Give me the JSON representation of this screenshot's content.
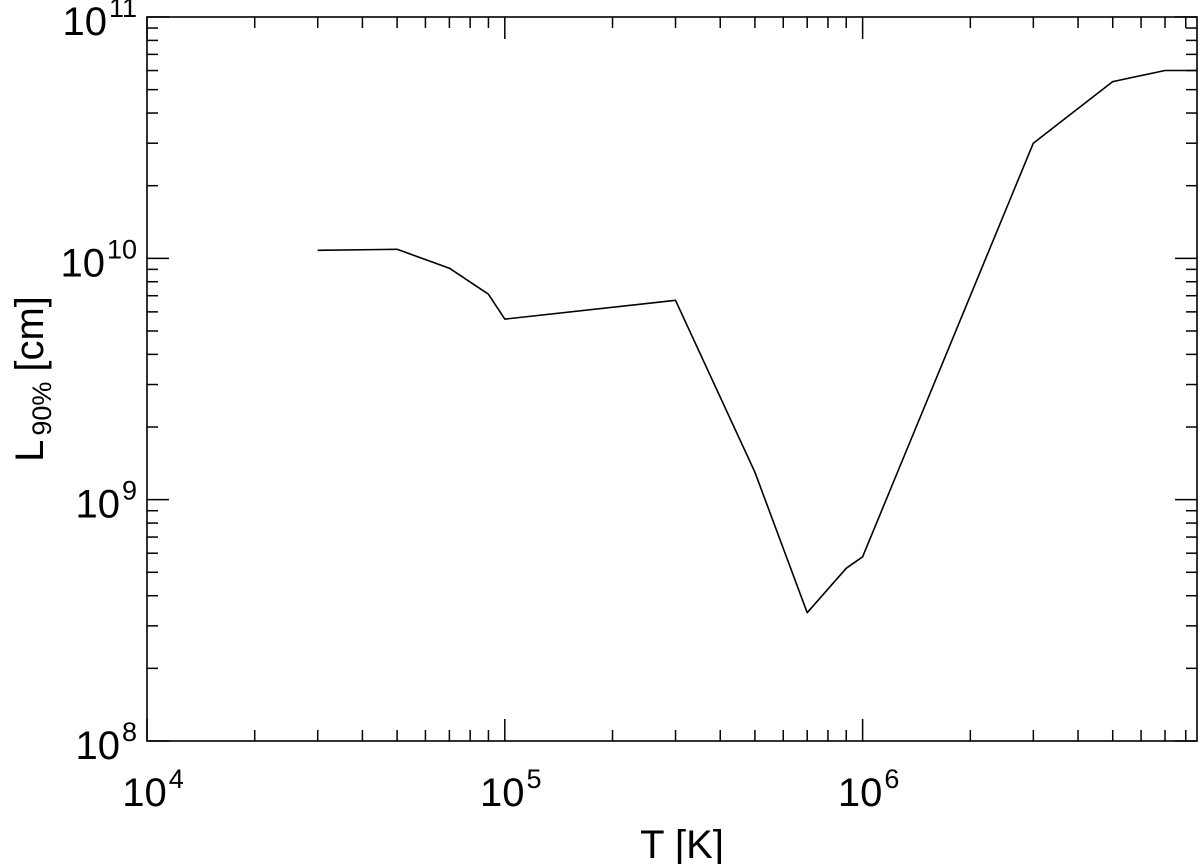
{
  "chart_data": {
    "type": "line",
    "title": "",
    "xlabel": "T [K]",
    "ylabel_main": "L",
    "ylabel_sub": "90%",
    "ylabel_unit": "[cm]",
    "x_scale": "log",
    "y_scale": "log",
    "xlim": [
      10000,
      8600000
    ],
    "ylim": [
      100000000,
      100000000000
    ],
    "grid": false,
    "legend": "none",
    "x_tick_labels": [
      {
        "base": "10",
        "exp": "4",
        "value": 10000
      },
      {
        "base": "10",
        "exp": "5",
        "value": 100000
      },
      {
        "base": "10",
        "exp": "6",
        "value": 1000000
      }
    ],
    "y_tick_labels": [
      {
        "base": "10",
        "exp": "8",
        "value": 100000000
      },
      {
        "base": "10",
        "exp": "9",
        "value": 1000000000
      },
      {
        "base": "10",
        "exp": "10",
        "value": 10000000000
      },
      {
        "base": "10",
        "exp": "11",
        "value": 100000000000
      }
    ],
    "series": [
      {
        "x": [
          30000,
          50000,
          70000,
          90000,
          100000,
          300000,
          500000,
          700000,
          900000,
          1000000,
          3000000,
          5000000,
          7000000,
          8600000
        ],
        "y": [
          10800000000,
          10900000000,
          9100000000,
          7100000000,
          5600000000,
          6700000000,
          1300000000,
          340000000,
          520000000,
          580000000,
          30000000000,
          54000000000,
          60000000000,
          60000000000
        ]
      }
    ],
    "colors": {
      "line": "#000000",
      "axes": "#000000"
    }
  }
}
